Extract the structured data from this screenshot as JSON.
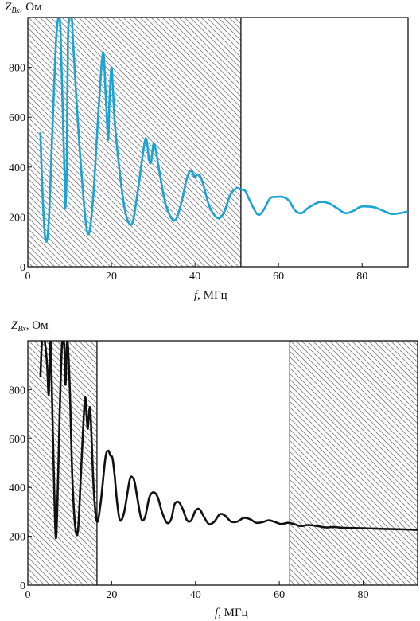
{
  "chart_data": [
    {
      "type": "line",
      "ylabel_main": "Z",
      "ylabel_sub": "Вх",
      "ylabel_unit": ", Ом",
      "xlabel_main": "f",
      "xlabel_unit": ", МГц",
      "xlim": [
        0,
        91
      ],
      "ylim": [
        0,
        1000
      ],
      "xticks": [
        0,
        20,
        40,
        60,
        80
      ],
      "yticks": [
        0,
        200,
        400,
        600,
        800
      ],
      "shaded_ranges": [
        [
          0,
          51
        ]
      ],
      "color": "#1aa3d4",
      "series": [
        {
          "x": [
            3,
            3.5,
            4.2,
            5,
            6,
            6.8,
            7.4,
            7.8,
            8.4,
            8.9,
            9.0,
            9.3,
            9.6,
            10.0,
            10.5,
            11.0,
            12.5,
            14.2,
            15.5,
            17.0,
            18.0,
            18.6,
            19.2,
            19.5,
            20.0,
            20.4,
            21.0,
            23.0,
            24.8,
            26.2,
            27.5,
            28.3,
            29.0,
            29.5,
            30.1,
            30.7,
            31.5,
            33.0,
            35.0,
            36.5,
            38.0,
            39.0,
            40.0,
            40.5,
            41.2,
            42.0,
            43.5,
            45.5,
            47.0,
            48.5,
            50.0,
            51.0,
            52.0,
            53.0,
            55.0,
            56.5,
            58.0,
            59.5,
            61.0,
            62.5,
            64.0,
            65.5,
            67.0,
            68.5,
            70.0,
            72.0,
            74.0,
            76.0,
            78.0,
            79.5,
            81.0,
            83.0,
            85.0,
            87.0,
            89.0,
            91.0
          ],
          "y": [
            540,
            300,
            110,
            180,
            600,
            920,
            1000,
            950,
            600,
            300,
            240,
            400,
            900,
            1000,
            1000,
            850,
            450,
            140,
            250,
            650,
            860,
            700,
            510,
            650,
            800,
            700,
            540,
            250,
            170,
            290,
            450,
            515,
            430,
            420,
            495,
            460,
            380,
            250,
            185,
            240,
            350,
            385,
            360,
            370,
            365,
            330,
            240,
            195,
            220,
            290,
            315,
            310,
            305,
            270,
            210,
            230,
            275,
            280,
            280,
            265,
            225,
            215,
            235,
            250,
            260,
            255,
            235,
            215,
            225,
            240,
            242,
            238,
            225,
            212,
            215,
            222
          ]
        }
      ]
    },
    {
      "type": "line",
      "ylabel_main": "Z",
      "ylabel_sub": "Вх",
      "ylabel_unit": ", Ом",
      "xlabel_main": "f",
      "xlabel_unit": ", МГц",
      "xlim": [
        0,
        93
      ],
      "ylim": [
        0,
        1000
      ],
      "xticks": [
        0,
        20,
        40,
        60,
        80
      ],
      "yticks": [
        0,
        200,
        400,
        600,
        800
      ],
      "shaded_ranges": [
        [
          0,
          16.5
        ],
        [
          62.5,
          93
        ]
      ],
      "color": "#111111",
      "series": [
        {
          "x": [
            3,
            3.4,
            4.0,
            4.6,
            5.0,
            5.4,
            6.0,
            6.6,
            7.0,
            7.6,
            8.2,
            8.7,
            9.0,
            9.4,
            9.8,
            10.1,
            10.6,
            11.3,
            12.0,
            12.8,
            13.6,
            14.0,
            14.3,
            14.7,
            15.0,
            15.7,
            16.5,
            17.4,
            18.5,
            19.2,
            19.7,
            20.2,
            20.7,
            21.3,
            22.0,
            23.0,
            24.3,
            25.0,
            25.5,
            26.2,
            27.1,
            28.0,
            29.0,
            30.0,
            31.0,
            32.0,
            33.2,
            34.2,
            35.0,
            36.0,
            37.0,
            38.0,
            39.0,
            40.0,
            41.0,
            42.0,
            43.2,
            44.5,
            45.8,
            47.0,
            48.5,
            50.0,
            51.5,
            53.0,
            54.5,
            56.0,
            57.5,
            59.0,
            60.5,
            62.0,
            63.5,
            65.0,
            67.0,
            69.0,
            71.0,
            73.0,
            75.0,
            80.0,
            85.0,
            90.0,
            93.0
          ],
          "y": [
            850,
            1000,
            1000,
            900,
            780,
            1000,
            600,
            210,
            300,
            700,
            1000,
            980,
            820,
            1000,
            900,
            760,
            450,
            240,
            230,
            500,
            760,
            700,
            640,
            720,
            690,
            400,
            260,
            340,
            520,
            550,
            530,
            520,
            450,
            340,
            265,
            300,
            430,
            440,
            420,
            350,
            270,
            280,
            360,
            380,
            360,
            300,
            255,
            270,
            330,
            340,
            310,
            265,
            265,
            305,
            310,
            280,
            250,
            260,
            290,
            285,
            260,
            260,
            275,
            270,
            255,
            258,
            265,
            258,
            250,
            255,
            250,
            242,
            246,
            242,
            236,
            238,
            235,
            233,
            230,
            228,
            226
          ]
        }
      ]
    }
  ]
}
